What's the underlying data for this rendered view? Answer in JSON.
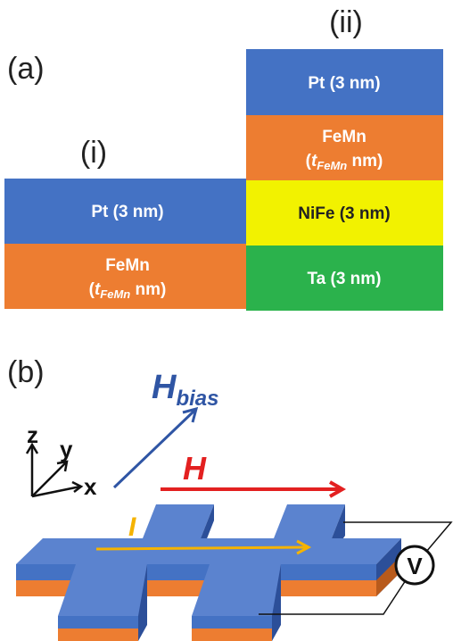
{
  "panel_a": {
    "label": "(a)",
    "stack_i": {
      "label": "(i)",
      "layers": [
        {
          "text": "Pt (3 nm)"
        },
        {
          "text": "FeMn",
          "line2": {
            "open": "(",
            "symbol": "t",
            "subscript": "FeMn",
            "close": " nm)"
          }
        }
      ]
    },
    "stack_ii": {
      "label": "(ii)",
      "layers": [
        {
          "text": "Pt (3 nm)"
        },
        {
          "text": "FeMn",
          "line2": {
            "open": "(",
            "symbol": "t",
            "subscript": "FeMn",
            "close": " nm)"
          }
        },
        {
          "text": "NiFe (3 nm)"
        },
        {
          "text": "Ta (3 nm)"
        }
      ]
    }
  },
  "panel_b": {
    "label": "(b)",
    "axes": {
      "z": "z",
      "y": "y",
      "x": "x"
    },
    "bias_field": {
      "symbol": "H",
      "subscript": "bias"
    },
    "field": "H",
    "current": "I",
    "voltmeter": "V"
  }
}
